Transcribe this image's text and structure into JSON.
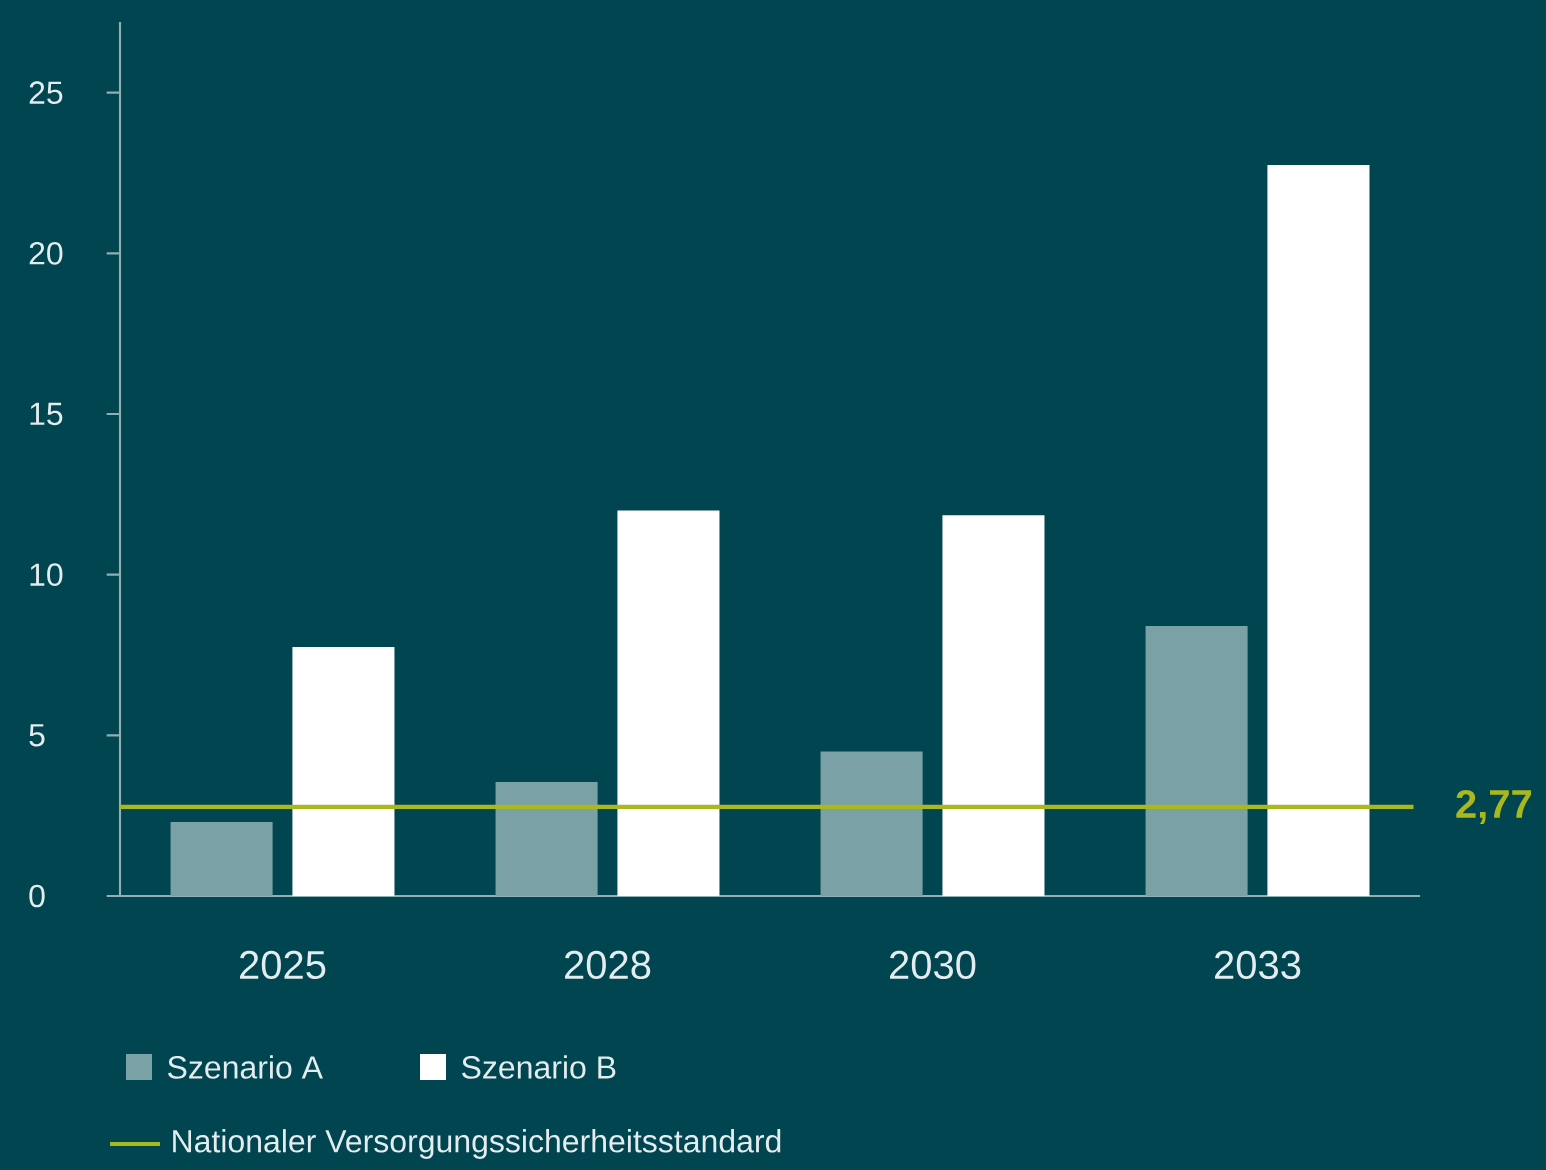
{
  "chart_data": {
    "type": "bar",
    "categories": [
      "2025",
      "2028",
      "2030",
      "2033"
    ],
    "series": [
      {
        "name": "Szenario A",
        "color": "#7aa1a6",
        "values": [
          2.3,
          3.55,
          4.5,
          8.4
        ]
      },
      {
        "name": "Szenario B",
        "color": "#ffffff",
        "values": [
          7.75,
          12.0,
          11.85,
          22.75
        ]
      }
    ],
    "ylim": [
      0,
      27.2
    ],
    "yticks": [
      0,
      5,
      10,
      15,
      20,
      25
    ],
    "ref_lines": [
      {
        "axis": "y",
        "value": 2.77,
        "label": "Nationaler Versorgungssicherheitsstandard",
        "color": "#a9b81e"
      }
    ],
    "annotations": [
      "2,77"
    ],
    "legend": "bottom",
    "grid": false
  }
}
